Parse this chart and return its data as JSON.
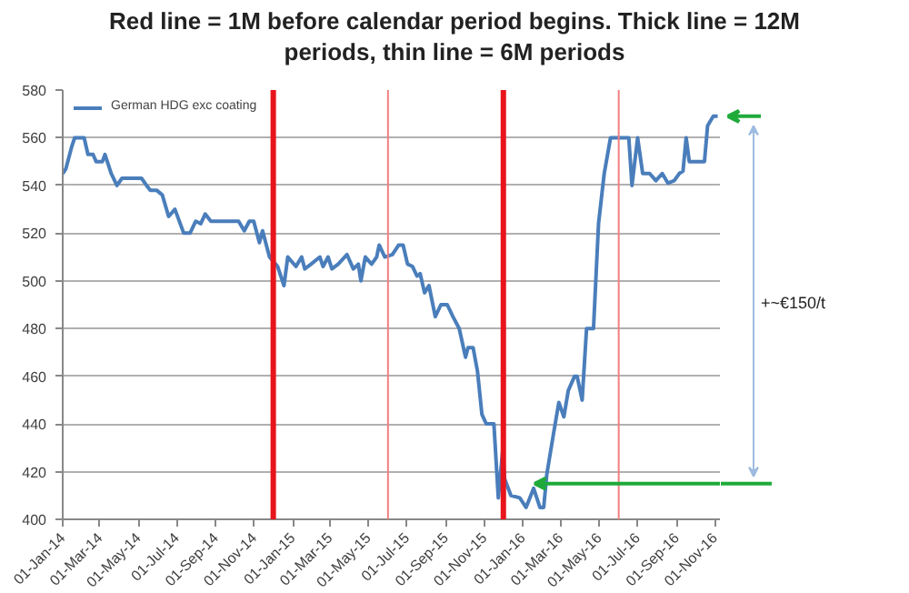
{
  "chart_data": {
    "type": "line",
    "title": "Red line = 1M before calendar period begins.  Thick line = 12M periods, thin line = 6M periods",
    "x": [
      "2014-01-01",
      "2014-01-06",
      "2014-01-15",
      "2014-01-20",
      "2014-02-04",
      "2014-02-10",
      "2014-02-18",
      "2014-02-23",
      "2014-03-05",
      "2014-03-09",
      "2014-03-19",
      "2014-03-28",
      "2014-04-05",
      "2014-05-06",
      "2014-05-14",
      "2014-05-20",
      "2014-05-30",
      "2014-06-08",
      "2014-06-18",
      "2014-06-28",
      "2014-07-12",
      "2014-07-22",
      "2014-07-31",
      "2014-08-08",
      "2014-08-15",
      "2014-08-24",
      "2014-10-07",
      "2014-10-16",
      "2014-10-24",
      "2014-10-31",
      "2014-11-09",
      "2014-11-14",
      "2014-11-25",
      "2014-12-08",
      "2014-12-18",
      "2014-12-24",
      "2015-01-06",
      "2015-01-15",
      "2015-01-20",
      "2015-01-30",
      "2015-02-13",
      "2015-02-18",
      "2015-02-26",
      "2015-03-04",
      "2015-03-14",
      "2015-03-28",
      "2015-04-07",
      "2015-04-15",
      "2015-04-19",
      "2015-04-26",
      "2015-05-06",
      "2015-05-14",
      "2015-05-18",
      "2015-05-27",
      "2015-06-08",
      "2015-06-18",
      "2015-06-25",
      "2015-07-02",
      "2015-07-10",
      "2015-07-17",
      "2015-07-22",
      "2015-07-29",
      "2015-08-05",
      "2015-08-15",
      "2015-08-24",
      "2015-09-03",
      "2015-09-12",
      "2015-09-22",
      "2015-10-02",
      "2015-10-06",
      "2015-10-14",
      "2015-10-21",
      "2015-10-28",
      "2015-11-04",
      "2015-11-16",
      "2015-11-23",
      "2015-11-30",
      "2015-12-03",
      "2015-12-13",
      "2015-12-27",
      "2016-01-06",
      "2016-01-18",
      "2016-01-28",
      "2016-02-03",
      "2016-02-08",
      "2016-02-18",
      "2016-02-27",
      "2016-03-06",
      "2016-03-13",
      "2016-03-23",
      "2016-03-27",
      "2016-04-04",
      "2016-04-11",
      "2016-04-22",
      "2016-04-30",
      "2016-05-09",
      "2016-05-19",
      "2016-06-17",
      "2016-06-22",
      "2016-07-01",
      "2016-07-09",
      "2016-07-20",
      "2016-07-30",
      "2016-08-09",
      "2016-08-18",
      "2016-08-28",
      "2016-09-05",
      "2016-09-11",
      "2016-09-16",
      "2016-09-21",
      "2016-10-15",
      "2016-10-20",
      "2016-10-29",
      "2016-11-05"
    ],
    "series": [
      {
        "name": "German HDG exc coating",
        "color": "#4a7ebb",
        "values": [
          545,
          547,
          556,
          560,
          560,
          553,
          553,
          550,
          550,
          553,
          545,
          540,
          543,
          543,
          540,
          538,
          538,
          536,
          527,
          530,
          520,
          520,
          525,
          524,
          528,
          525,
          525,
          521,
          525,
          525,
          516,
          521,
          510,
          506,
          498,
          510,
          506,
          510,
          505,
          507,
          510,
          506,
          510,
          505,
          507,
          511,
          505,
          507,
          500,
          510,
          507,
          510,
          515,
          510,
          511,
          515,
          515,
          507,
          506,
          502,
          503,
          495,
          498,
          485,
          490,
          490,
          485,
          480,
          468,
          472,
          472,
          462,
          444,
          440,
          440,
          409,
          429,
          417,
          410,
          409,
          405,
          413,
          405,
          405,
          419,
          435,
          449,
          443,
          454,
          460,
          460,
          450,
          480,
          480,
          524,
          545,
          560,
          560,
          540,
          560,
          545,
          545,
          542,
          545,
          541,
          542,
          545,
          546,
          560,
          550,
          550,
          565,
          569,
          569
        ]
      }
    ],
    "xlim": [
      "2014-01-01",
      "2016-11-10"
    ],
    "xticks": [
      {
        "value": "2014-01-01",
        "label": "01-Jan-14"
      },
      {
        "value": "2014-03-01",
        "label": "01-Mar-14"
      },
      {
        "value": "2014-05-01",
        "label": "01-May-14"
      },
      {
        "value": "2014-07-01",
        "label": "01-Jul-14"
      },
      {
        "value": "2014-09-01",
        "label": "01-Sep-14"
      },
      {
        "value": "2014-11-01",
        "label": "01-Nov-14"
      },
      {
        "value": "2015-01-01",
        "label": "01-Jan-15"
      },
      {
        "value": "2015-03-01",
        "label": "01-Mar-15"
      },
      {
        "value": "2015-05-01",
        "label": "01-May-15"
      },
      {
        "value": "2015-07-01",
        "label": "01-Jul-15"
      },
      {
        "value": "2015-09-01",
        "label": "01-Sep-15"
      },
      {
        "value": "2015-11-01",
        "label": "01-Nov-15"
      },
      {
        "value": "2016-01-01",
        "label": "01-Jan-16"
      },
      {
        "value": "2016-03-01",
        "label": "01-Mar-16"
      },
      {
        "value": "2016-05-01",
        "label": "01-May-16"
      },
      {
        "value": "2016-07-01",
        "label": "01-Jul-16"
      },
      {
        "value": "2016-09-01",
        "label": "01-Sep-16"
      },
      {
        "value": "2016-11-01",
        "label": "01-Nov-16"
      }
    ],
    "ylim": [
      400,
      580
    ],
    "yticks": [
      400,
      420,
      440,
      460,
      480,
      500,
      520,
      540,
      560,
      580
    ],
    "ref_lines": [
      {
        "axis": "x",
        "value": "2014-12-01",
        "color": "#e8141c"
      },
      {
        "axis": "x",
        "value": "2015-06-01",
        "color": "#f08080"
      },
      {
        "axis": "x",
        "value": "2015-12-01",
        "color": "#e8141c"
      },
      {
        "axis": "x",
        "value": "2016-06-01",
        "color": "#f08080"
      }
    ],
    "annotations": [
      "+~€150/t"
    ],
    "grid": "y",
    "legend": "top left",
    "marker": "none",
    "line_style": "solid"
  }
}
